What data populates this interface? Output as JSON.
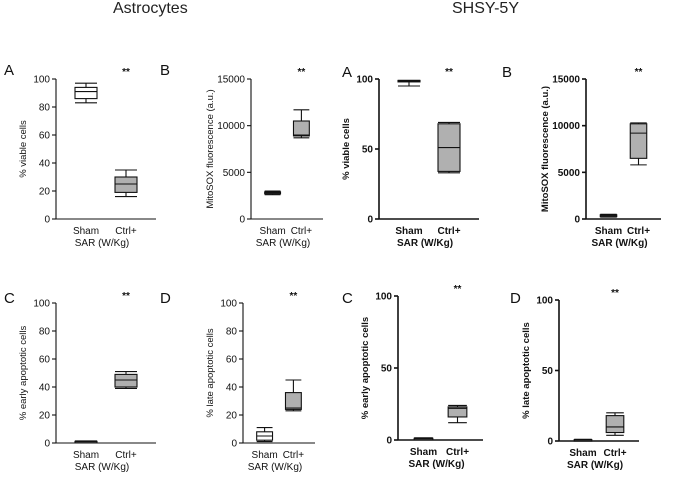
{
  "figure": {
    "group_titles": [
      "Astrocytes",
      "SHSY-5Y"
    ]
  },
  "chart_data": [
    {
      "id": "astro-A",
      "group": "Astrocytes",
      "letter": "A",
      "type": "box",
      "ylabel": "% viable cells",
      "xlabel": "SAR (W/Kg)",
      "ylim": [
        0,
        100
      ],
      "yticks": [
        0,
        20,
        40,
        60,
        80,
        100
      ],
      "categories": [
        "Sham",
        "Ctrl+"
      ],
      "significance": "**",
      "bold_axes": false,
      "boxes": [
        {
          "category": "Sham",
          "fill": "#ffffff",
          "min": 83,
          "q1": 86,
          "median": 91,
          "q3": 94,
          "max": 97
        },
        {
          "category": "Ctrl+",
          "fill": "#b0b0b0",
          "min": 16,
          "q1": 19,
          "median": 25,
          "q3": 30,
          "max": 35
        }
      ]
    },
    {
      "id": "astro-B",
      "group": "Astrocytes",
      "letter": "B",
      "type": "box",
      "ylabel": "MitoSOX fluorescence (a.u.)",
      "xlabel": "SAR (W/Kg)",
      "ylim": [
        0,
        15000
      ],
      "yticks": [
        0,
        5000,
        10000,
        15000
      ],
      "categories": [
        "Sham",
        "Ctrl+"
      ],
      "significance": "**",
      "bold_axes": false,
      "boxes": [
        {
          "category": "Sham",
          "fill": "#b0b0b0",
          "min": 2600,
          "q1": 2700,
          "median": 2800,
          "q3": 2900,
          "max": 3000
        },
        {
          "category": "Ctrl+",
          "fill": "#b0b0b0",
          "min": 8700,
          "q1": 8900,
          "median": 9000,
          "q3": 10500,
          "max": 11700
        }
      ]
    },
    {
      "id": "shsy-A",
      "group": "SHSY-5Y",
      "letter": "A",
      "type": "box",
      "ylabel": "% viable cells",
      "xlabel": "SAR (W/Kg)",
      "ylim": [
        0,
        100
      ],
      "yticks": [
        0,
        50,
        100
      ],
      "categories": [
        "Sham",
        "Ctrl+"
      ],
      "significance": "**",
      "bold_axes": true,
      "boxes": [
        {
          "category": "Sham",
          "fill": "#ffffff",
          "min": 95,
          "q1": 98,
          "median": 98.5,
          "q3": 99,
          "max": 99
        },
        {
          "category": "Ctrl+",
          "fill": "#b0b0b0",
          "min": 33,
          "q1": 34,
          "median": 51,
          "q3": 68,
          "max": 69
        }
      ]
    },
    {
      "id": "shsy-B",
      "group": "SHSY-5Y",
      "letter": "B",
      "type": "box",
      "ylabel": "MitoSOX fluorescence (a.u.)",
      "xlabel": "SAR (W/Kg)",
      "ylim": [
        0,
        15000
      ],
      "yticks": [
        0,
        5000,
        10000,
        15000
      ],
      "categories": [
        "Sham",
        "Ctrl+"
      ],
      "significance": "**",
      "bold_axes": true,
      "boxes": [
        {
          "category": "Sham",
          "fill": "#b0b0b0",
          "min": 200,
          "q1": 250,
          "median": 350,
          "q3": 450,
          "max": 500
        },
        {
          "category": "Ctrl+",
          "fill": "#b0b0b0",
          "min": 5800,
          "q1": 6500,
          "median": 9200,
          "q3": 10200,
          "max": 10300
        }
      ]
    },
    {
      "id": "astro-C",
      "group": "Astrocytes",
      "letter": "C",
      "type": "box",
      "ylabel": "% early apoptotic cells",
      "xlabel": "SAR (W/Kg)",
      "ylim": [
        0,
        100
      ],
      "yticks": [
        0,
        20,
        40,
        60,
        80,
        100
      ],
      "categories": [
        "Sham",
        "Ctrl+"
      ],
      "significance": "**",
      "bold_axes": false,
      "boxes": [
        {
          "category": "Sham",
          "fill": "#b0b0b0",
          "min": 0.5,
          "q1": 0.8,
          "median": 1,
          "q3": 1.2,
          "max": 1.5
        },
        {
          "category": "Ctrl+",
          "fill": "#b0b0b0",
          "min": 39,
          "q1": 40,
          "median": 45,
          "q3": 49,
          "max": 51
        }
      ]
    },
    {
      "id": "astro-D",
      "group": "Astrocytes",
      "letter": "D",
      "type": "box",
      "ylabel": "% late apoptotic cells",
      "xlabel": "SAR (W/Kg)",
      "ylim": [
        0,
        100
      ],
      "yticks": [
        0,
        20,
        40,
        60,
        80,
        100
      ],
      "categories": [
        "Sham",
        "Ctrl+"
      ],
      "significance": "**",
      "bold_axes": false,
      "boxes": [
        {
          "category": "Sham",
          "fill": "#ffffff",
          "min": 1,
          "q1": 2,
          "median": 5,
          "q3": 8,
          "max": 11
        },
        {
          "category": "Ctrl+",
          "fill": "#b0b0b0",
          "min": 23,
          "q1": 24,
          "median": 25,
          "q3": 36,
          "max": 45
        }
      ]
    },
    {
      "id": "shsy-C",
      "group": "SHSY-5Y",
      "letter": "C",
      "type": "box",
      "ylabel": "% early apoptotic cells",
      "xlabel": "SAR (W/Kg)",
      "ylim": [
        0,
        100
      ],
      "yticks": [
        0,
        50,
        100
      ],
      "categories": [
        "Sham",
        "Ctrl+"
      ],
      "significance": "**",
      "bold_axes": true,
      "boxes": [
        {
          "category": "Sham",
          "fill": "#b0b0b0",
          "min": 0.5,
          "q1": 0.8,
          "median": 1,
          "q3": 1.2,
          "max": 1.5
        },
        {
          "category": "Ctrl+",
          "fill": "#b0b0b0",
          "min": 12,
          "q1": 16,
          "median": 22,
          "q3": 23,
          "max": 24
        }
      ]
    },
    {
      "id": "shsy-D",
      "group": "SHSY-5Y",
      "letter": "D",
      "type": "box",
      "ylabel": "% late apoptotic cells",
      "xlabel": "SAR (W/Kg)",
      "ylim": [
        0,
        100
      ],
      "yticks": [
        0,
        50,
        100
      ],
      "categories": [
        "Sham",
        "Ctrl+"
      ],
      "significance": "**",
      "bold_axes": true,
      "boxes": [
        {
          "category": "Sham",
          "fill": "#b0b0b0",
          "min": 0.3,
          "q1": 0.5,
          "median": 0.8,
          "q3": 1,
          "max": 1.2
        },
        {
          "category": "Ctrl+",
          "fill": "#b0b0b0",
          "min": 4,
          "q1": 6,
          "median": 10,
          "q3": 18,
          "max": 20
        }
      ]
    }
  ]
}
